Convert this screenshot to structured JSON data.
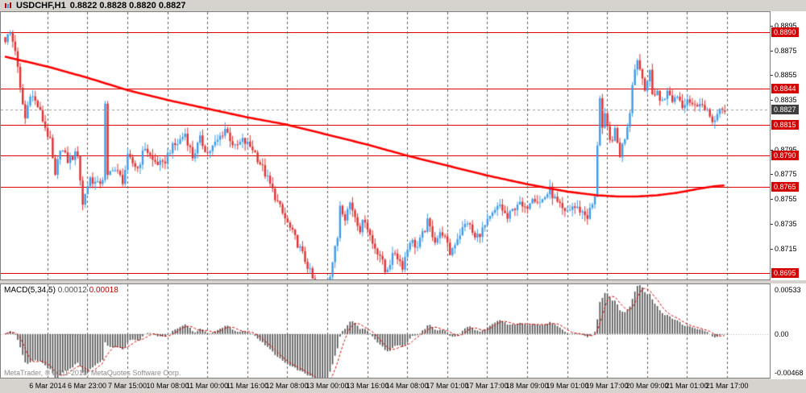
{
  "header": {
    "title": "USDCHF,H1",
    "ohlc": "0.8822 0.8828 0.8820 0.8827"
  },
  "footer": {
    "copyright": "MetaTrader, © 2001-2013, MetaQuotes Software Corp."
  },
  "macd_panel": {
    "name": "MACD(5,34,5)",
    "value1": "0.00012",
    "value2": "0.00018"
  },
  "chart_data": {
    "type": "candlestick",
    "symbol": "USDCHF",
    "timeframe": "H1",
    "last_ohlc": {
      "open": 0.8822,
      "high": 0.8828,
      "low": 0.882,
      "close": 0.8827
    },
    "price_axis": {
      "max": 0.8906,
      "min": 0.869,
      "ticks": [
        "0.8895",
        "0.8875",
        "0.8855",
        "0.8835",
        "0.8795",
        "0.8775",
        "0.8755",
        "0.8735",
        "0.8715"
      ],
      "tick_values": [
        0.8895,
        0.8875,
        0.8855,
        0.8835,
        0.8795,
        0.8775,
        0.8755,
        0.8735,
        0.8715
      ]
    },
    "time_labels": [
      "6 Mar 2014",
      "6 Mar 23:00",
      "7 Mar 15:00",
      "10 Mar 08:00",
      "11 Mar 00:00",
      "11 Mar 16:00",
      "12 Mar 08:00",
      "13 Mar 00:00",
      "13 Mar 16:00",
      "14 Mar 08:00",
      "17 Mar 01:00",
      "17 Mar 17:00",
      "18 Mar 09:00",
      "19 Mar 01:00",
      "19 Mar 17:00",
      "20 Mar 09:00",
      "21 Mar 01:00",
      "21 Mar 17:00"
    ],
    "grid": {
      "first_index": 17,
      "step": 16
    },
    "candle_count": 289,
    "close_keyframes": [
      [
        0,
        0.8884
      ],
      [
        2,
        0.8889
      ],
      [
        4,
        0.8876
      ],
      [
        6,
        0.8843
      ],
      [
        8,
        0.882
      ],
      [
        10,
        0.8841
      ],
      [
        13,
        0.883
      ],
      [
        16,
        0.8813
      ],
      [
        18,
        0.8801
      ],
      [
        20,
        0.8772
      ],
      [
        22,
        0.8797
      ],
      [
        25,
        0.8786
      ],
      [
        29,
        0.8792
      ],
      [
        31,
        0.875
      ],
      [
        32,
        0.876
      ],
      [
        34,
        0.8772
      ],
      [
        37,
        0.8766
      ],
      [
        39,
        0.8772
      ],
      [
        40,
        0.883
      ],
      [
        41,
        0.8772
      ],
      [
        43,
        0.8781
      ],
      [
        47,
        0.877
      ],
      [
        49,
        0.8788
      ],
      [
        53,
        0.878
      ],
      [
        56,
        0.8797
      ],
      [
        59,
        0.8786
      ],
      [
        63,
        0.8782
      ],
      [
        66,
        0.8795
      ],
      [
        69,
        0.88
      ],
      [
        72,
        0.8808
      ],
      [
        75,
        0.8789
      ],
      [
        78,
        0.8803
      ],
      [
        81,
        0.8792
      ],
      [
        85,
        0.8802
      ],
      [
        88,
        0.8812
      ],
      [
        92,
        0.8796
      ],
      [
        95,
        0.8802
      ],
      [
        99,
        0.8796
      ],
      [
        102,
        0.8784
      ],
      [
        105,
        0.8771
      ],
      [
        108,
        0.8757
      ],
      [
        111,
        0.8743
      ],
      [
        114,
        0.8731
      ],
      [
        117,
        0.8719
      ],
      [
        121,
        0.8701
      ],
      [
        123,
        0.869
      ],
      [
        126,
        0.8663
      ],
      [
        128,
        0.8678
      ],
      [
        130,
        0.8695
      ],
      [
        133,
        0.8724
      ],
      [
        134,
        0.8751
      ],
      [
        136,
        0.8741
      ],
      [
        138,
        0.8752
      ],
      [
        142,
        0.8731
      ],
      [
        144,
        0.8739
      ],
      [
        147,
        0.8719
      ],
      [
        150,
        0.871
      ],
      [
        152,
        0.8696
      ],
      [
        156,
        0.8712
      ],
      [
        159,
        0.8701
      ],
      [
        162,
        0.8722
      ],
      [
        165,
        0.8716
      ],
      [
        169,
        0.8736
      ],
      [
        172,
        0.8722
      ],
      [
        175,
        0.8728
      ],
      [
        178,
        0.8711
      ],
      [
        181,
        0.8724
      ],
      [
        185,
        0.8737
      ],
      [
        188,
        0.8723
      ],
      [
        191,
        0.873
      ],
      [
        195,
        0.8742
      ],
      [
        198,
        0.875
      ],
      [
        201,
        0.8739
      ],
      [
        205,
        0.8752
      ],
      [
        208,
        0.8746
      ],
      [
        211,
        0.8758
      ],
      [
        214,
        0.8752
      ],
      [
        218,
        0.8762
      ],
      [
        221,
        0.8751
      ],
      [
        224,
        0.8743
      ],
      [
        227,
        0.8749
      ],
      [
        230,
        0.8746
      ],
      [
        233,
        0.8741
      ],
      [
        236,
        0.8755
      ],
      [
        237,
        0.88
      ],
      [
        238,
        0.8838
      ],
      [
        239,
        0.8812
      ],
      [
        240,
        0.8821
      ],
      [
        242,
        0.8801
      ],
      [
        244,
        0.8809
      ],
      [
        246,
        0.8791
      ],
      [
        248,
        0.8805
      ],
      [
        250,
        0.8826
      ],
      [
        251,
        0.885
      ],
      [
        253,
        0.8869
      ],
      [
        254,
        0.886
      ],
      [
        256,
        0.8846
      ],
      [
        258,
        0.8856
      ],
      [
        259,
        0.8839
      ],
      [
        261,
        0.8843
      ],
      [
        262,
        0.8833
      ],
      [
        265,
        0.8841
      ],
      [
        267,
        0.8835
      ],
      [
        269,
        0.8839
      ],
      [
        271,
        0.8831
      ],
      [
        273,
        0.8837
      ],
      [
        276,
        0.8829
      ],
      [
        278,
        0.8835
      ],
      [
        280,
        0.8826
      ],
      [
        282,
        0.8822
      ],
      [
        284,
        0.8818
      ],
      [
        286,
        0.8825
      ],
      [
        288,
        0.8827
      ]
    ],
    "ma_keyframes": [
      [
        0,
        0.887
      ],
      [
        17,
        0.8862
      ],
      [
        33,
        0.8853
      ],
      [
        49,
        0.8843
      ],
      [
        65,
        0.8835
      ],
      [
        81,
        0.8828
      ],
      [
        97,
        0.8821
      ],
      [
        113,
        0.8815
      ],
      [
        129,
        0.8807
      ],
      [
        145,
        0.8799
      ],
      [
        161,
        0.879
      ],
      [
        177,
        0.8782
      ],
      [
        193,
        0.8774
      ],
      [
        209,
        0.8767
      ],
      [
        225,
        0.8761
      ],
      [
        237,
        0.8758
      ],
      [
        245,
        0.8757
      ],
      [
        253,
        0.8757
      ],
      [
        261,
        0.8758
      ],
      [
        269,
        0.876
      ],
      [
        277,
        0.8763
      ],
      [
        283,
        0.8765
      ],
      [
        288,
        0.8766
      ]
    ],
    "hlines": [
      {
        "price": 0.889,
        "label": "0.8890"
      },
      {
        "price": 0.8844,
        "label": "0.8844"
      },
      {
        "price": 0.8815,
        "label": "0.8815"
      },
      {
        "price": 0.879,
        "label": "0.8790"
      },
      {
        "price": 0.8765,
        "label": "0.8765"
      },
      {
        "price": 0.8695,
        "label": "0.8695"
      }
    ],
    "current_price": {
      "value": 0.8827,
      "label": "0.8827"
    },
    "macd": {
      "fast": 5,
      "slow": 34,
      "signal": 5,
      "scale_max": 0.00533,
      "scale_min": -0.00468,
      "axis_labels": [
        "0.00533",
        "0.00",
        "-0.00468"
      ]
    },
    "colors": {
      "bull": "#3d9be9",
      "bear": "#e03030",
      "ma": "#ff0000",
      "hline": "#dd0000",
      "hline_label_bg": "#d40000",
      "current_label_bg": "#3f3f3f",
      "grid": "#5a5a5a",
      "macd_bar": "#4d4d4d",
      "macd_signal": "#d00000"
    }
  }
}
